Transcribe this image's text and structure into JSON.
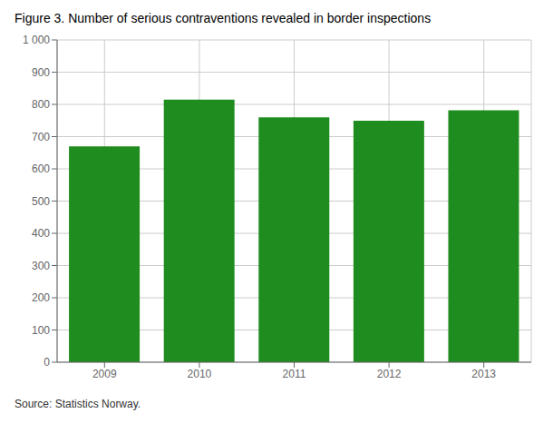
{
  "chart_data": {
    "type": "bar",
    "title": "Figure 3. Number of serious contraventions revealed in border inspections",
    "categories": [
      "2009",
      "2010",
      "2011",
      "2012",
      "2013"
    ],
    "values": [
      670,
      815,
      760,
      749,
      782
    ],
    "color": "#1f8c1f",
    "ylim": [
      0,
      1000
    ],
    "yticks": [
      0,
      100,
      200,
      300,
      400,
      500,
      600,
      700,
      800,
      900,
      {
        "value": 1000,
        "label": "1 000"
      }
    ],
    "grid": true,
    "annotations": [
      "Source: Statistics Norway."
    ]
  }
}
